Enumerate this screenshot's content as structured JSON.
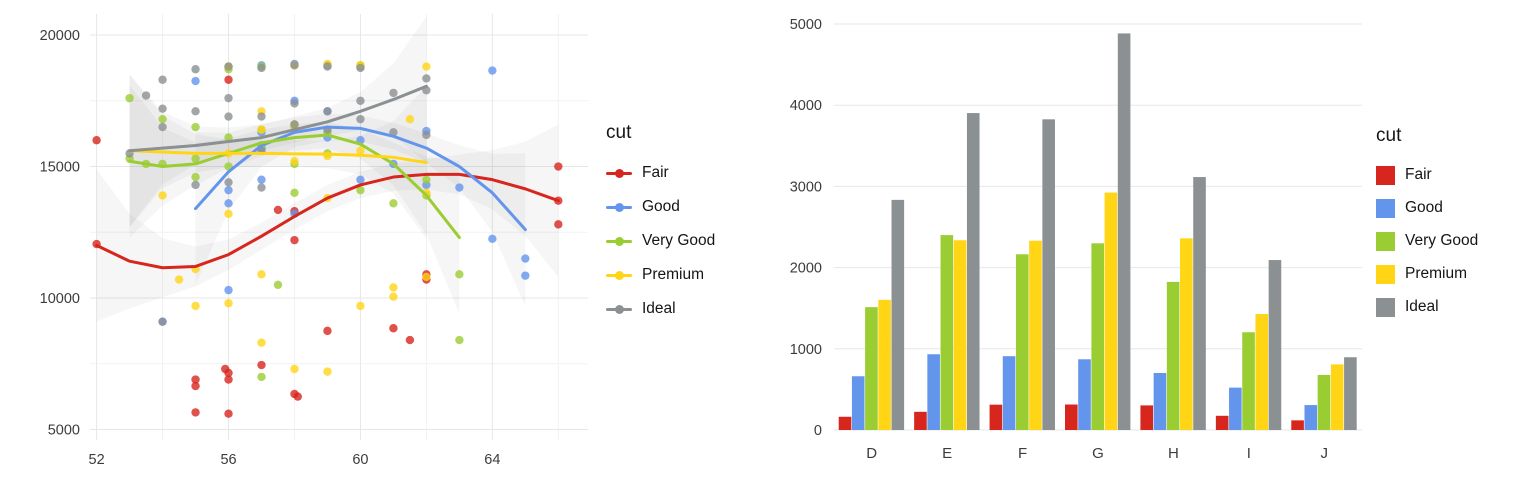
{
  "palette": {
    "fair": "#d7261d",
    "good": "#6495ed",
    "very_good": "#9acd32",
    "premium": "#ffd515",
    "ideal": "#8b9093",
    "grid_major": "#e7e7e7",
    "grid_minor": "#f2f2f2",
    "axis_text": "#3c3c3c"
  },
  "chart_data": [
    {
      "type": "scatter",
      "title": "",
      "xlabel": "",
      "ylabel": "",
      "legend_title": "cut",
      "legend_position": "right",
      "grid": true,
      "xlim": [
        52,
        66
      ],
      "ylim": [
        5000,
        20000
      ],
      "xticks": [
        52,
        56,
        60,
        64
      ],
      "yticks": [
        5000,
        10000,
        15000,
        20000
      ],
      "xticks_minor": [
        54,
        58,
        62,
        66
      ],
      "yticks_minor": [
        7500,
        12500,
        17500
      ],
      "series": [
        {
          "name": "Fair",
          "color": "#d7261d",
          "points": [
            [
              52,
              16000
            ],
            [
              52,
              12050
            ],
            [
              55,
              6900
            ],
            [
              55,
              6650
            ],
            [
              55,
              5650
            ],
            [
              55.9,
              7300
            ],
            [
              56,
              7150
            ],
            [
              56,
              6900
            ],
            [
              56,
              5600
            ],
            [
              56,
              18300
            ],
            [
              57,
              7450
            ],
            [
              57.5,
              13350
            ],
            [
              58,
              13300
            ],
            [
              58,
              12200
            ],
            [
              58,
              6350
            ],
            [
              58.1,
              6250
            ],
            [
              59,
              8750
            ],
            [
              61,
              8850
            ],
            [
              61.5,
              8400
            ],
            [
              62,
              10900
            ],
            [
              62,
              10700
            ],
            [
              66,
              15000
            ],
            [
              66,
              13700
            ],
            [
              66,
              12800
            ]
          ],
          "smooth": [
            [
              52,
              12000
            ],
            [
              53,
              11400
            ],
            [
              54,
              11150
            ],
            [
              55,
              11200
            ],
            [
              56,
              11650
            ],
            [
              57,
              12350
            ],
            [
              58,
              13100
            ],
            [
              59,
              13800
            ],
            [
              60,
              14300
            ],
            [
              61,
              14600
            ],
            [
              62,
              14700
            ],
            [
              63,
              14700
            ],
            [
              64,
              14500
            ],
            [
              65,
              14150
            ],
            [
              66,
              13700
            ]
          ]
        },
        {
          "name": "Good",
          "color": "#6495ed",
          "points": [
            [
              54,
              9100
            ],
            [
              55,
              18250
            ],
            [
              56,
              18800
            ],
            [
              56,
              14100
            ],
            [
              56,
              13600
            ],
            [
              56,
              10300
            ],
            [
              57,
              18850
            ],
            [
              57,
              16300
            ],
            [
              57,
              15700
            ],
            [
              57,
              14500
            ],
            [
              58,
              18900
            ],
            [
              58,
              17500
            ],
            [
              58,
              16600
            ],
            [
              58,
              13200
            ],
            [
              59,
              18850
            ],
            [
              59,
              17100
            ],
            [
              59,
              16100
            ],
            [
              60,
              18800
            ],
            [
              60,
              16000
            ],
            [
              60,
              14500
            ],
            [
              61,
              15100
            ],
            [
              62,
              16350
            ],
            [
              62,
              14300
            ],
            [
              63,
              14200
            ],
            [
              64,
              18650
            ],
            [
              64,
              12250
            ],
            [
              65,
              11500
            ],
            [
              65,
              10850
            ]
          ],
          "smooth": [
            [
              55,
              13400
            ],
            [
              56,
              14800
            ],
            [
              57,
              15800
            ],
            [
              58,
              16300
            ],
            [
              59,
              16500
            ],
            [
              60,
              16450
            ],
            [
              61,
              16150
            ],
            [
              62,
              15700
            ],
            [
              63,
              15000
            ],
            [
              64,
              14000
            ],
            [
              65,
              12600
            ]
          ]
        },
        {
          "name": "Very Good",
          "color": "#9acd32",
          "points": [
            [
              53,
              17600
            ],
            [
              53,
              15300
            ],
            [
              53.5,
              15100
            ],
            [
              54,
              16800
            ],
            [
              54,
              15100
            ],
            [
              55,
              16500
            ],
            [
              55,
              15300
            ],
            [
              55,
              14600
            ],
            [
              56,
              18700
            ],
            [
              56,
              16100
            ],
            [
              56,
              15000
            ],
            [
              57,
              18800
            ],
            [
              57,
              16400
            ],
            [
              57,
              15800
            ],
            [
              57,
              7000
            ],
            [
              57.5,
              10500
            ],
            [
              58,
              16500
            ],
            [
              58,
              15100
            ],
            [
              58,
              14000
            ],
            [
              59,
              16300
            ],
            [
              59,
              15500
            ],
            [
              60,
              18850
            ],
            [
              60,
              14100
            ],
            [
              61,
              13600
            ],
            [
              62,
              14500
            ],
            [
              62,
              13900
            ],
            [
              63,
              10900
            ],
            [
              63,
              8400
            ]
          ],
          "smooth": [
            [
              53,
              15200
            ],
            [
              54,
              15000
            ],
            [
              55,
              15100
            ],
            [
              56,
              15500
            ],
            [
              57,
              15900
            ],
            [
              58,
              16100
            ],
            [
              59,
              16200
            ],
            [
              60,
              15850
            ],
            [
              61,
              15100
            ],
            [
              62,
              13900
            ],
            [
              63,
              12300
            ]
          ]
        },
        {
          "name": "Premium",
          "color": "#ffd515",
          "points": [
            [
              54,
              13900
            ],
            [
              54.5,
              10700
            ],
            [
              55,
              11100
            ],
            [
              55,
              9700
            ],
            [
              56,
              18800
            ],
            [
              56,
              15500
            ],
            [
              56,
              13200
            ],
            [
              56,
              9800
            ],
            [
              57,
              17100
            ],
            [
              57,
              16400
            ],
            [
              57,
              10900
            ],
            [
              57,
              8300
            ],
            [
              58,
              18850
            ],
            [
              58,
              16600
            ],
            [
              58,
              15200
            ],
            [
              58,
              7300
            ],
            [
              59,
              18900
            ],
            [
              59,
              15400
            ],
            [
              59,
              13800
            ],
            [
              59,
              7200
            ],
            [
              60,
              18850
            ],
            [
              60,
              15600
            ],
            [
              60,
              9700
            ],
            [
              61,
              10400
            ],
            [
              61,
              10050
            ],
            [
              61.5,
              16800
            ],
            [
              62,
              18800
            ],
            [
              62,
              14000
            ],
            [
              62,
              10800
            ]
          ],
          "smooth": [
            [
              53,
              15600
            ],
            [
              54,
              15550
            ],
            [
              55,
              15500
            ],
            [
              56,
              15500
            ],
            [
              57,
              15500
            ],
            [
              58,
              15480
            ],
            [
              59,
              15470
            ],
            [
              60,
              15430
            ],
            [
              61,
              15350
            ],
            [
              62,
              15150
            ]
          ]
        },
        {
          "name": "Ideal",
          "color": "#8b9093",
          "points": [
            [
              53,
              15500
            ],
            [
              53.5,
              17700
            ],
            [
              54,
              18300
            ],
            [
              54,
              17200
            ],
            [
              54,
              16500
            ],
            [
              54,
              9100
            ],
            [
              55,
              18700
            ],
            [
              55,
              17100
            ],
            [
              55,
              14300
            ],
            [
              56,
              18800
            ],
            [
              56,
              17600
            ],
            [
              56,
              16900
            ],
            [
              56,
              14400
            ],
            [
              57,
              18750
            ],
            [
              57,
              16900
            ],
            [
              57,
              15600
            ],
            [
              57,
              14200
            ],
            [
              58,
              18850
            ],
            [
              58,
              17400
            ],
            [
              58,
              16600
            ],
            [
              59,
              18800
            ],
            [
              59,
              17100
            ],
            [
              59,
              16400
            ],
            [
              60,
              18750
            ],
            [
              60,
              17500
            ],
            [
              60,
              16800
            ],
            [
              61,
              17800
            ],
            [
              61,
              16300
            ],
            [
              62,
              18350
            ],
            [
              62,
              17900
            ],
            [
              62,
              16200
            ]
          ],
          "smooth": [
            [
              53,
              15600
            ],
            [
              54,
              15700
            ],
            [
              55,
              15800
            ],
            [
              56,
              15950
            ],
            [
              57,
              16100
            ],
            [
              58,
              16400
            ],
            [
              59,
              16700
            ],
            [
              60,
              17100
            ],
            [
              61,
              17550
            ],
            [
              62,
              18050
            ]
          ]
        }
      ]
    },
    {
      "type": "bar",
      "title": "",
      "xlabel": "",
      "ylabel": "",
      "legend_title": "cut",
      "legend_position": "right",
      "grid": true,
      "categories": [
        "D",
        "E",
        "F",
        "G",
        "H",
        "I",
        "J"
      ],
      "ylim": [
        0,
        5000
      ],
      "yticks": [
        0,
        1000,
        2000,
        3000,
        4000,
        5000
      ],
      "series": [
        {
          "name": "Fair",
          "color": "#d7261d",
          "values": [
            163,
            224,
            312,
            314,
            303,
            175,
            119
          ]
        },
        {
          "name": "Good",
          "color": "#6495ed",
          "values": [
            662,
            933,
            909,
            871,
            702,
            522,
            307
          ]
        },
        {
          "name": "Very Good",
          "color": "#9acd32",
          "values": [
            1513,
            2400,
            2164,
            2299,
            1824,
            1204,
            678
          ]
        },
        {
          "name": "Premium",
          "color": "#ffd515",
          "values": [
            1603,
            2337,
            2331,
            2924,
            2360,
            1428,
            808
          ]
        },
        {
          "name": "Ideal",
          "color": "#8b9093",
          "values": [
            2834,
            3903,
            3826,
            4884,
            3115,
            2093,
            896
          ]
        }
      ]
    }
  ]
}
